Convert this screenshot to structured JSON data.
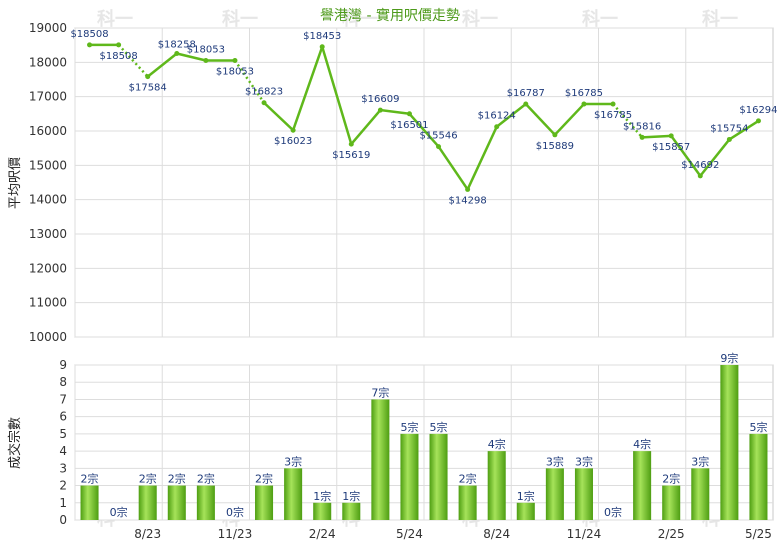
{
  "chart_data": [
    {
      "type": "line",
      "title": "譽港灣 - 實用呎價走勢",
      "ylabel": "平均呎價",
      "ylim": [
        10000,
        19000
      ],
      "yticks": [
        "10000",
        "11000",
        "12000",
        "13000",
        "14000",
        "15000",
        "16000",
        "17000",
        "18000",
        "19000"
      ],
      "series": [
        {
          "values": [
            18508,
            18508,
            17584,
            18258,
            18053,
            18053,
            16823,
            16023,
            18453,
            15619,
            16609,
            16501,
            15546,
            14298,
            16124,
            16787,
            15889,
            16785,
            16785,
            15816,
            15857,
            14692,
            15754,
            16294
          ],
          "labels": [
            "$18508",
            "$18508",
            "$17584",
            "$18258",
            "$18053",
            "$18053",
            "$16823",
            "$16023",
            "$18453",
            "$15619",
            "$16609",
            "$16501",
            "$15546",
            "$14298",
            "$16124",
            "$16787",
            "$15889",
            "$16785",
            "$16785",
            "$15816",
            "$15857",
            "$14692",
            "$15754",
            "$16294"
          ],
          "dotted": [
            false,
            true,
            false,
            false,
            false,
            true,
            false,
            false,
            false,
            false,
            false,
            false,
            false,
            false,
            false,
            false,
            false,
            false,
            true,
            false,
            false,
            false,
            false,
            false
          ]
        }
      ],
      "color": "#5fb81b"
    },
    {
      "type": "bar",
      "ylabel": "成交宗數",
      "ylim": [
        0,
        9
      ],
      "yticks": [
        "0",
        "1",
        "2",
        "3",
        "4",
        "5",
        "6",
        "7",
        "8",
        "9"
      ],
      "values": [
        2,
        0,
        2,
        2,
        2,
        0,
        2,
        3,
        1,
        1,
        7,
        5,
        5,
        2,
        4,
        1,
        3,
        3,
        0,
        4,
        2,
        3,
        9,
        5
      ],
      "labels": [
        "2宗",
        "0宗",
        "2宗",
        "2宗",
        "2宗",
        "0宗",
        "2宗",
        "3宗",
        "1宗",
        "1宗",
        "7宗",
        "5宗",
        "5宗",
        "2宗",
        "4宗",
        "1宗",
        "3宗",
        "3宗",
        "0宗",
        "4宗",
        "2宗",
        "3宗",
        "9宗",
        "5宗"
      ],
      "x_tick_labels": [
        {
          "index": 2,
          "label": "8/23"
        },
        {
          "index": 5,
          "label": "11/23"
        },
        {
          "index": 8,
          "label": "2/24"
        },
        {
          "index": 11,
          "label": "5/24"
        },
        {
          "index": 14,
          "label": "8/24"
        },
        {
          "index": 17,
          "label": "11/24"
        },
        {
          "index": 20,
          "label": "2/25"
        },
        {
          "index": 23,
          "label": "5/25"
        }
      ],
      "color": "#6cc21f"
    }
  ],
  "watermark": "科一"
}
